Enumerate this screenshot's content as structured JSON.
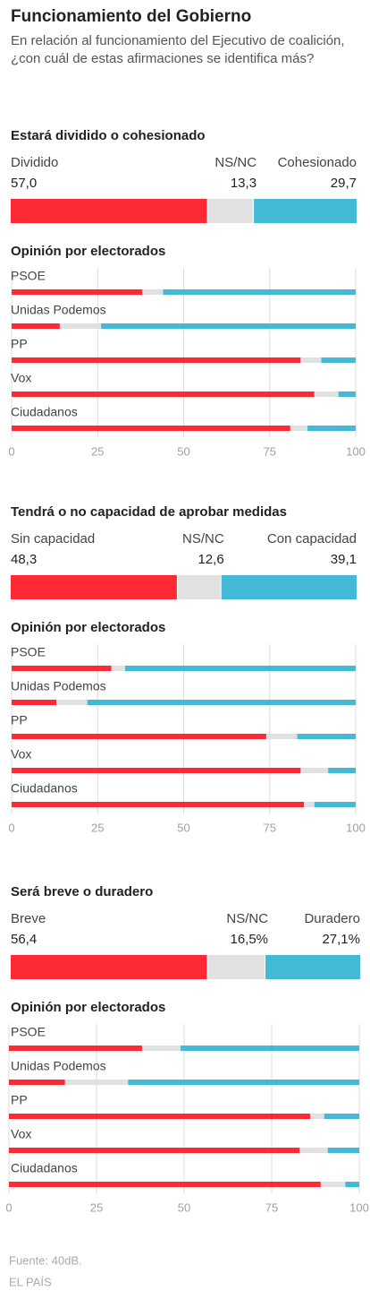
{
  "title": "Funcionamiento del Gobierno",
  "subtitle": "En relación al funcionamiento del Ejecutivo de coalición, ¿con cuál de estas afirmaciones se identifica más?",
  "chart_data": [
    {
      "type": "stacked-bar",
      "title": "Estará dividido o cohesionado",
      "series": [
        {
          "name": "Dividido",
          "color": "#fd2a36",
          "values": [
            57.0
          ],
          "value_labels": [
            "57,0"
          ]
        },
        {
          "name": "NS/NC",
          "color": "#e1e1e1",
          "values": [
            13.3
          ],
          "value_labels": [
            "13,3"
          ]
        },
        {
          "name": "Cohesionado",
          "color": "#44b9d5",
          "values": [
            29.7
          ],
          "value_labels": [
            "29,7"
          ]
        }
      ]
    },
    {
      "type": "stacked-bar",
      "title": "Opinión por electorados",
      "categories": [
        "PSOE",
        "Unidas Podemos",
        "PP",
        "Vox",
        "Ciudadanos"
      ],
      "series": [
        {
          "color": "#fd2a36",
          "values": [
            38,
            14,
            84,
            88,
            81
          ]
        },
        {
          "color": "#e1e1e1",
          "values": [
            6,
            12,
            6,
            7,
            5
          ]
        },
        {
          "color": "#44b9d5",
          "values": [
            56,
            74,
            10,
            5,
            14
          ]
        }
      ],
      "xlim": [
        0,
        100
      ],
      "xticks": [
        0,
        25,
        50,
        75,
        100
      ],
      "grid": true
    },
    {
      "type": "stacked-bar",
      "title": "Tendrá o no capacidad de aprobar medidas",
      "series": [
        {
          "name": "Sin capacidad",
          "color": "#fd2a36",
          "values": [
            48.3
          ],
          "value_labels": [
            "48,3"
          ]
        },
        {
          "name": "NS/NC",
          "color": "#e1e1e1",
          "values": [
            12.6
          ],
          "value_labels": [
            "12,6"
          ]
        },
        {
          "name": "Con capacidad",
          "color": "#44b9d5",
          "values": [
            39.1
          ],
          "value_labels": [
            "39,1"
          ]
        }
      ]
    },
    {
      "type": "stacked-bar",
      "title": "Opinión por electorados",
      "categories": [
        "PSOE",
        "Unidas Podemos",
        "PP",
        "Vox",
        "Ciudadanos"
      ],
      "series": [
        {
          "color": "#fd2a36",
          "values": [
            29,
            13,
            74,
            84,
            85
          ]
        },
        {
          "color": "#e1e1e1",
          "values": [
            4,
            9,
            9,
            8,
            3
          ]
        },
        {
          "color": "#44b9d5",
          "values": [
            67,
            78,
            17,
            8,
            12
          ]
        }
      ],
      "xlim": [
        0,
        100
      ],
      "xticks": [
        0,
        25,
        50,
        75,
        100
      ],
      "grid": true
    },
    {
      "type": "stacked-bar",
      "title": "Será breve o duradero",
      "series": [
        {
          "name": "Breve",
          "color": "#fd2a36",
          "values": [
            56.4
          ],
          "value_labels": [
            "56,4"
          ]
        },
        {
          "name": "NS/NC",
          "color": "#e1e1e1",
          "values": [
            16.5
          ],
          "value_labels": [
            "16,5%"
          ]
        },
        {
          "name": "Duradero",
          "color": "#44b9d5",
          "values": [
            27.1
          ],
          "value_labels": [
            "27,1%"
          ]
        }
      ]
    },
    {
      "type": "stacked-bar",
      "title": "Opinión por electorados",
      "categories": [
        "PSOE",
        "Unidas Podemos",
        "PP",
        "Vox",
        "Ciudadanos"
      ],
      "series": [
        {
          "color": "#fd2a36",
          "values": [
            38,
            16,
            86,
            83,
            89
          ]
        },
        {
          "color": "#e1e1e1",
          "values": [
            11,
            18,
            4,
            8,
            7
          ]
        },
        {
          "color": "#44b9d5",
          "values": [
            51,
            66,
            10,
            9,
            4
          ]
        }
      ],
      "xlim": [
        0,
        100
      ],
      "xticks": [
        0,
        25,
        50,
        75,
        100
      ],
      "grid": true
    }
  ],
  "footer": {
    "source": "Fuente: 40dB.",
    "credit": "EL PAÍS"
  }
}
